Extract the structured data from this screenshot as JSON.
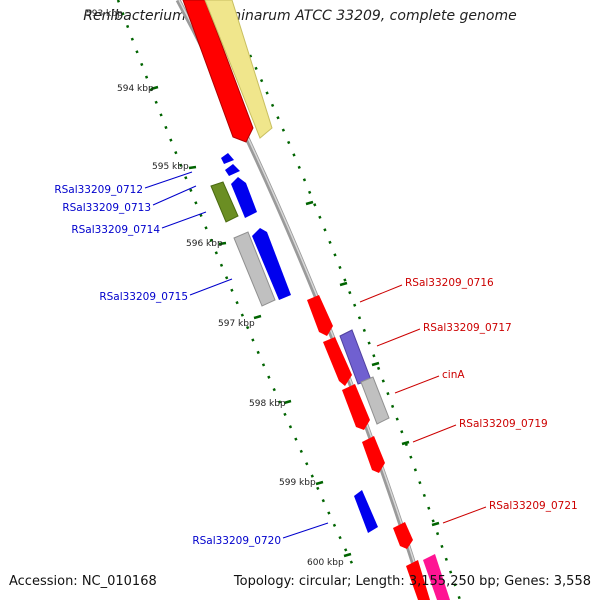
{
  "title": "Renibacterium salmoninarum ATCC 33209, complete genome",
  "footer": {
    "accession": "Accession: NC_010168",
    "summary": "Topology: circular; Length: 3,155,250 bp; Genes: 3,558"
  },
  "ticks": [
    "593 kbp",
    "594 kbp",
    "595 kbp",
    "596 kbp",
    "597 kbp",
    "598 kbp",
    "599 kbp",
    "600 kbp"
  ],
  "labels": {
    "left": [
      "RSal33209_0712",
      "RSal33209_0713",
      "RSal33209_0714",
      "RSal33209_0715",
      "RSal33209_0720"
    ],
    "right": [
      "RSal33209_0716",
      "RSal33209_0717",
      "cinA",
      "RSal33209_0719",
      "RSal33209_0721"
    ]
  },
  "colors": {
    "reverse_label": "#0000cc",
    "forward_label": "#cc0000",
    "cds_red": "#ff0000",
    "cds_blue": "#0000ee",
    "cds_grey": "#c0c0c0",
    "cds_olive": "#6b8e23",
    "cds_purple": "#7060d0",
    "cds_yellow": "#f0e68c",
    "cds_pink": "#ff1493",
    "backbone": "#888888",
    "ticks": "#006400"
  }
}
